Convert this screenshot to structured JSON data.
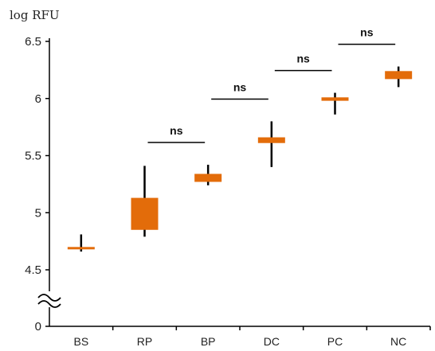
{
  "chart_data": {
    "type": "box",
    "ylabel": "log RFU",
    "xlabel": "",
    "title": "",
    "ylim": [
      4.5,
      6.5
    ],
    "axis_break": true,
    "bottom_tick": "0",
    "yticks": [
      "4.5",
      "5",
      "5.5",
      "6",
      "6.5"
    ],
    "categories": [
      "BS",
      "RP",
      "BP",
      "DC",
      "PC",
      "NC"
    ],
    "boxes": [
      {
        "category": "BS",
        "min": 4.66,
        "q1": 4.68,
        "median": 4.69,
        "q3": 4.7,
        "max": 4.81
      },
      {
        "category": "RP",
        "min": 4.79,
        "q1": 4.85,
        "median": 4.98,
        "q3": 5.13,
        "max": 5.41
      },
      {
        "category": "BP",
        "min": 5.24,
        "q1": 5.27,
        "median": 5.3,
        "q3": 5.34,
        "max": 5.42
      },
      {
        "category": "DC",
        "min": 5.4,
        "q1": 5.61,
        "median": 5.64,
        "q3": 5.66,
        "max": 5.8
      },
      {
        "category": "PC",
        "min": 5.86,
        "q1": 5.98,
        "median": 5.99,
        "q3": 6.01,
        "max": 6.05
      },
      {
        "category": "NC",
        "min": 6.1,
        "q1": 6.17,
        "median": 6.2,
        "q3": 6.24,
        "max": 6.28
      }
    ],
    "significance": [
      {
        "from": "RP",
        "to": "BP",
        "label": "ns"
      },
      {
        "from": "BP",
        "to": "DC",
        "label": "ns"
      },
      {
        "from": "DC",
        "to": "PC",
        "label": "ns"
      },
      {
        "from": "PC",
        "to": "NC",
        "label": "ns"
      }
    ],
    "box_color": "#e36c0a",
    "whisker_color": "#000000"
  }
}
